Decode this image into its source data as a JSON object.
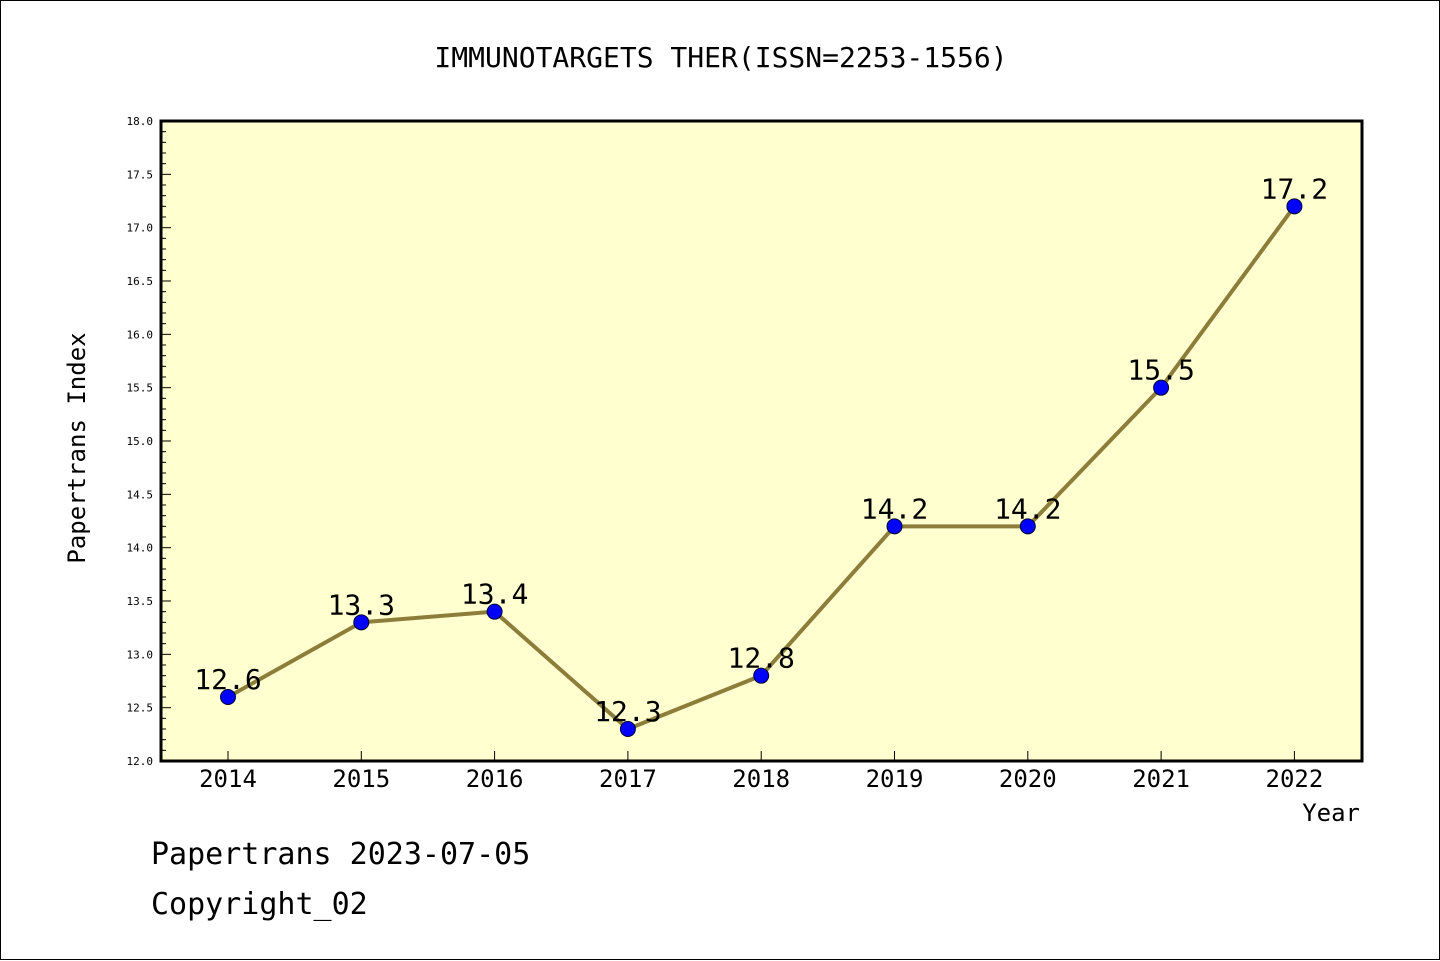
{
  "chart_data": {
    "type": "line",
    "title": "IMMUNOTARGETS THER(ISSN=2253-1556)",
    "xlabel": "Year",
    "ylabel": "Papertrans Index",
    "categories": [
      "2014",
      "2015",
      "2016",
      "2017",
      "2018",
      "2019",
      "2020",
      "2021",
      "2022"
    ],
    "series": [
      {
        "values": [
          12.6,
          13.3,
          13.4,
          12.3,
          12.8,
          14.2,
          14.2,
          15.5,
          17.2
        ]
      }
    ],
    "data_labels": [
      "12.6",
      "13.3",
      "13.4",
      "12.3",
      "12.8",
      "14.2",
      "14.2",
      "15.5",
      "17.2"
    ],
    "ylim": [
      12.0,
      18.0
    ],
    "yticks": [
      "12.0",
      "12.5",
      "13.0",
      "13.5",
      "14.0",
      "14.5",
      "15.0",
      "15.5",
      "16.0",
      "16.5",
      "17.0",
      "17.5",
      "18.0"
    ],
    "grid": false,
    "colors": {
      "plot_background": "#ffffd0",
      "line": "#8c7d3a",
      "marker": "#0000ff",
      "axis": "#000000"
    }
  },
  "footer": {
    "line1": "Papertrans 2023-07-05",
    "line2": "Copyright_02"
  }
}
